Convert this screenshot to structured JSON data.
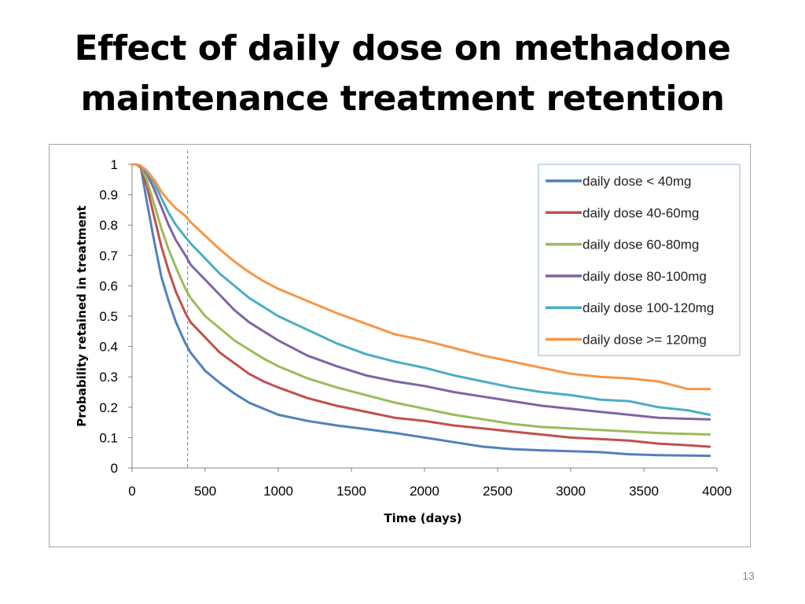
{
  "title": {
    "line1": "Effect of daily dose on methadone",
    "line2": "maintenance treatment retention"
  },
  "page_number": "13",
  "chart_data": {
    "type": "line",
    "title": "",
    "xlabel": "Time (days)",
    "ylabel": "Probability retained in treatment",
    "xlim": [
      0,
      4000
    ],
    "ylim": [
      0,
      1
    ],
    "x_ticks": [
      0,
      500,
      1000,
      1500,
      2000,
      2500,
      3000,
      3500,
      4000
    ],
    "y_ticks": [
      0,
      0.1,
      0.2,
      0.3,
      0.4,
      0.5,
      0.6,
      0.7,
      0.8,
      0.9,
      1
    ],
    "y_tick_labels": [
      "0",
      "0.1",
      "0.2",
      "0.3",
      "0.4",
      "0.5",
      "0.6",
      "0.7",
      "0.8",
      "0.9",
      "1"
    ],
    "reference_line_x": 380,
    "legend_position": "top-right",
    "x": [
      0,
      30,
      60,
      100,
      150,
      200,
      250,
      300,
      365,
      400,
      500,
      600,
      700,
      800,
      900,
      1000,
      1200,
      1400,
      1600,
      1800,
      2000,
      2200,
      2400,
      2600,
      2800,
      3000,
      3200,
      3400,
      3600,
      3800,
      3950
    ],
    "series": [
      {
        "name": "daily dose < 40mg",
        "color": "#4f81bd",
        "values": [
          1,
          1,
          0.99,
          0.88,
          0.75,
          0.63,
          0.55,
          0.48,
          0.41,
          0.38,
          0.32,
          0.28,
          0.245,
          0.215,
          0.195,
          0.175,
          0.155,
          0.14,
          0.128,
          0.115,
          0.1,
          0.085,
          0.07,
          0.062,
          0.058,
          0.055,
          0.052,
          0.045,
          0.042,
          0.041,
          0.04
        ]
      },
      {
        "name": "daily dose 40-60mg",
        "color": "#c0504d",
        "values": [
          1,
          1,
          0.99,
          0.93,
          0.83,
          0.73,
          0.65,
          0.58,
          0.51,
          0.48,
          0.43,
          0.38,
          0.345,
          0.31,
          0.285,
          0.265,
          0.23,
          0.205,
          0.185,
          0.165,
          0.155,
          0.14,
          0.13,
          0.12,
          0.11,
          0.1,
          0.095,
          0.09,
          0.08,
          0.075,
          0.07
        ]
      },
      {
        "name": "daily dose 60-80mg",
        "color": "#9bbb59",
        "values": [
          1,
          1,
          0.995,
          0.95,
          0.87,
          0.79,
          0.72,
          0.66,
          0.59,
          0.56,
          0.5,
          0.46,
          0.42,
          0.39,
          0.36,
          0.335,
          0.295,
          0.265,
          0.24,
          0.215,
          0.195,
          0.175,
          0.16,
          0.145,
          0.135,
          0.13,
          0.125,
          0.12,
          0.115,
          0.112,
          0.11
        ]
      },
      {
        "name": "daily dose 80-100mg",
        "color": "#8064a2",
        "values": [
          1,
          1,
          0.995,
          0.97,
          0.92,
          0.86,
          0.8,
          0.75,
          0.7,
          0.67,
          0.62,
          0.57,
          0.52,
          0.48,
          0.45,
          0.42,
          0.37,
          0.335,
          0.305,
          0.285,
          0.27,
          0.25,
          0.235,
          0.22,
          0.205,
          0.195,
          0.185,
          0.175,
          0.165,
          0.162,
          0.16
        ]
      },
      {
        "name": "daily dose 100-120mg",
        "color": "#4bacc6",
        "values": [
          1,
          1,
          0.995,
          0.975,
          0.94,
          0.89,
          0.84,
          0.8,
          0.76,
          0.74,
          0.69,
          0.64,
          0.6,
          0.56,
          0.53,
          0.5,
          0.455,
          0.41,
          0.375,
          0.35,
          0.33,
          0.305,
          0.285,
          0.265,
          0.25,
          0.24,
          0.225,
          0.22,
          0.2,
          0.19,
          0.175
        ]
      },
      {
        "name": "daily dose >= 120mg",
        "color": "#f79646",
        "values": [
          1,
          1,
          0.995,
          0.98,
          0.95,
          0.91,
          0.88,
          0.855,
          0.83,
          0.81,
          0.765,
          0.72,
          0.68,
          0.645,
          0.615,
          0.59,
          0.55,
          0.51,
          0.475,
          0.44,
          0.42,
          0.395,
          0.37,
          0.35,
          0.33,
          0.31,
          0.3,
          0.295,
          0.285,
          0.26,
          0.26
        ]
      }
    ]
  }
}
